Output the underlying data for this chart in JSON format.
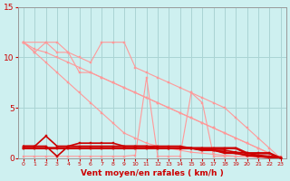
{
  "title": "",
  "xlabel": "Vent moyen/en rafales ( km/h )",
  "ylabel": "",
  "background_color": "#cef0f0",
  "grid_color": "#aad4d4",
  "text_color": "#cc0000",
  "axis_color": "#999999",
  "xlim": [
    -0.5,
    23.5
  ],
  "ylim": [
    0,
    15
  ],
  "xticks": [
    0,
    1,
    2,
    3,
    4,
    5,
    6,
    7,
    8,
    9,
    10,
    11,
    12,
    13,
    14,
    15,
    16,
    17,
    18,
    19,
    20,
    21,
    22,
    23
  ],
  "yticks": [
    0,
    5,
    10,
    15
  ],
  "lines": [
    {
      "x": [
        0,
        1,
        2,
        3,
        4,
        5,
        6,
        7,
        8,
        9,
        10,
        11,
        12,
        13,
        14,
        15,
        16,
        17,
        18,
        19,
        20,
        21,
        22,
        23
      ],
      "y": [
        11.5,
        10.5,
        9.5,
        8.5,
        7.5,
        6.5,
        5.5,
        4.5,
        3.5,
        2.5,
        2.0,
        1.5,
        1.2,
        1.0,
        0.8,
        0.6,
        0.5,
        0.4,
        0.3,
        0.2,
        0.15,
        0.1,
        0.05,
        0.0
      ],
      "color": "#ff9999",
      "lw": 0.8,
      "marker": "s",
      "ms": 1.5,
      "zorder": 2
    },
    {
      "x": [
        0,
        1,
        2,
        3,
        4,
        5,
        6,
        7,
        8,
        9,
        10,
        11,
        12,
        13,
        14,
        15,
        16,
        17,
        18,
        19,
        20,
        21,
        22,
        23
      ],
      "y": [
        11.5,
        10.8,
        10.5,
        10.0,
        9.5,
        9.0,
        8.5,
        8.0,
        7.5,
        7.0,
        6.5,
        6.0,
        5.5,
        5.0,
        4.5,
        4.0,
        3.5,
        3.0,
        2.5,
        2.0,
        1.5,
        1.0,
        0.5,
        0.0
      ],
      "color": "#ff9999",
      "lw": 0.8,
      "marker": "s",
      "ms": 1.5,
      "zorder": 2
    },
    {
      "x": [
        0,
        1,
        2,
        3,
        4,
        5,
        6,
        7,
        8,
        9,
        10,
        11,
        12,
        13,
        14,
        15,
        16,
        17,
        18,
        19,
        20,
        21,
        22,
        23
      ],
      "y": [
        11.5,
        10.5,
        11.5,
        11.5,
        10.5,
        8.5,
        8.5,
        8.0,
        7.5,
        7.0,
        6.5,
        6.0,
        5.5,
        5.0,
        4.5,
        4.0,
        3.5,
        3.0,
        2.5,
        2.0,
        1.5,
        1.0,
        0.5,
        0.0
      ],
      "color": "#ff9999",
      "lw": 0.8,
      "marker": "s",
      "ms": 1.5,
      "zorder": 2
    },
    {
      "x": [
        0,
        2,
        3,
        4,
        5,
        6,
        7,
        8,
        9,
        10,
        11,
        12,
        13,
        14,
        15,
        16,
        17,
        18,
        19,
        20,
        21,
        22,
        23
      ],
      "y": [
        11.5,
        11.5,
        10.5,
        10.5,
        10.0,
        9.5,
        11.5,
        11.5,
        11.5,
        9.0,
        8.5,
        8.0,
        7.5,
        7.0,
        6.5,
        6.0,
        5.5,
        5.0,
        4.0,
        3.0,
        2.0,
        1.0,
        0.0
      ],
      "color": "#ff9999",
      "lw": 0.8,
      "marker": "s",
      "ms": 1.5,
      "zorder": 2
    },
    {
      "x": [
        0,
        1,
        2,
        3,
        4,
        5,
        6,
        7,
        8,
        9,
        10,
        11,
        12,
        13,
        14,
        15,
        16,
        17,
        18,
        19,
        20,
        21,
        22,
        23
      ],
      "y": [
        0.2,
        0.2,
        0.2,
        0.2,
        0.2,
        0.2,
        0.2,
        0.2,
        0.2,
        0.2,
        0.3,
        8.0,
        0.2,
        0.2,
        0.2,
        6.5,
        5.5,
        0.2,
        0.2,
        0.2,
        0.2,
        0.2,
        0.2,
        0.2
      ],
      "color": "#ff9999",
      "lw": 0.8,
      "marker": "s",
      "ms": 1.5,
      "zorder": 2
    },
    {
      "x": [
        0,
        1,
        2,
        3,
        4,
        5,
        6,
        7,
        8,
        9,
        10,
        11,
        12,
        13,
        14,
        15,
        16,
        17,
        18,
        19,
        20,
        21,
        22,
        23
      ],
      "y": [
        1.2,
        1.2,
        2.2,
        1.2,
        1.2,
        1.2,
        1.2,
        1.2,
        1.2,
        1.2,
        1.2,
        1.2,
        1.2,
        1.2,
        1.2,
        1.0,
        1.0,
        0.8,
        0.8,
        0.6,
        0.5,
        0.3,
        0.2,
        0.1
      ],
      "color": "#cc0000",
      "lw": 1.2,
      "marker": "s",
      "ms": 2.0,
      "zorder": 3
    },
    {
      "x": [
        0,
        1,
        2,
        3,
        4,
        5,
        6,
        7,
        8,
        9,
        10,
        11,
        12,
        13,
        14,
        15,
        16,
        17,
        18,
        19,
        20,
        21,
        22,
        23
      ],
      "y": [
        1.0,
        1.0,
        1.0,
        1.0,
        1.0,
        1.0,
        1.0,
        1.0,
        1.0,
        1.0,
        1.0,
        1.0,
        1.0,
        1.0,
        1.0,
        1.0,
        0.8,
        0.8,
        0.6,
        0.5,
        0.3,
        0.2,
        0.1,
        0.0
      ],
      "color": "#cc0000",
      "lw": 1.5,
      "marker": "s",
      "ms": 2.0,
      "zorder": 3
    },
    {
      "x": [
        0,
        1,
        2,
        3,
        4,
        5,
        6,
        7,
        8,
        9,
        10,
        11,
        12,
        13,
        14,
        15,
        16,
        17,
        18,
        19,
        20,
        21,
        22,
        23
      ],
      "y": [
        1.2,
        1.2,
        1.2,
        0.2,
        1.2,
        1.5,
        1.5,
        1.5,
        1.5,
        1.2,
        1.2,
        1.2,
        1.0,
        1.0,
        1.0,
        1.0,
        0.8,
        0.8,
        0.5,
        0.5,
        0.3,
        0.2,
        0.1,
        0.0
      ],
      "color": "#cc0000",
      "lw": 1.2,
      "marker": "s",
      "ms": 2.0,
      "zorder": 3
    },
    {
      "x": [
        0,
        1,
        2,
        3,
        4,
        5,
        6,
        7,
        8,
        9,
        10,
        11,
        12,
        13,
        14,
        15,
        16,
        17,
        18,
        19,
        20,
        21,
        22,
        23
      ],
      "y": [
        1.0,
        1.0,
        1.0,
        1.0,
        1.0,
        1.0,
        1.0,
        1.0,
        1.0,
        1.0,
        1.0,
        1.0,
        1.0,
        1.0,
        1.0,
        1.0,
        1.0,
        1.0,
        1.0,
        1.0,
        0.5,
        0.5,
        0.5,
        0.0
      ],
      "color": "#cc0000",
      "lw": 1.8,
      "marker": "s",
      "ms": 2.0,
      "zorder": 3
    }
  ]
}
